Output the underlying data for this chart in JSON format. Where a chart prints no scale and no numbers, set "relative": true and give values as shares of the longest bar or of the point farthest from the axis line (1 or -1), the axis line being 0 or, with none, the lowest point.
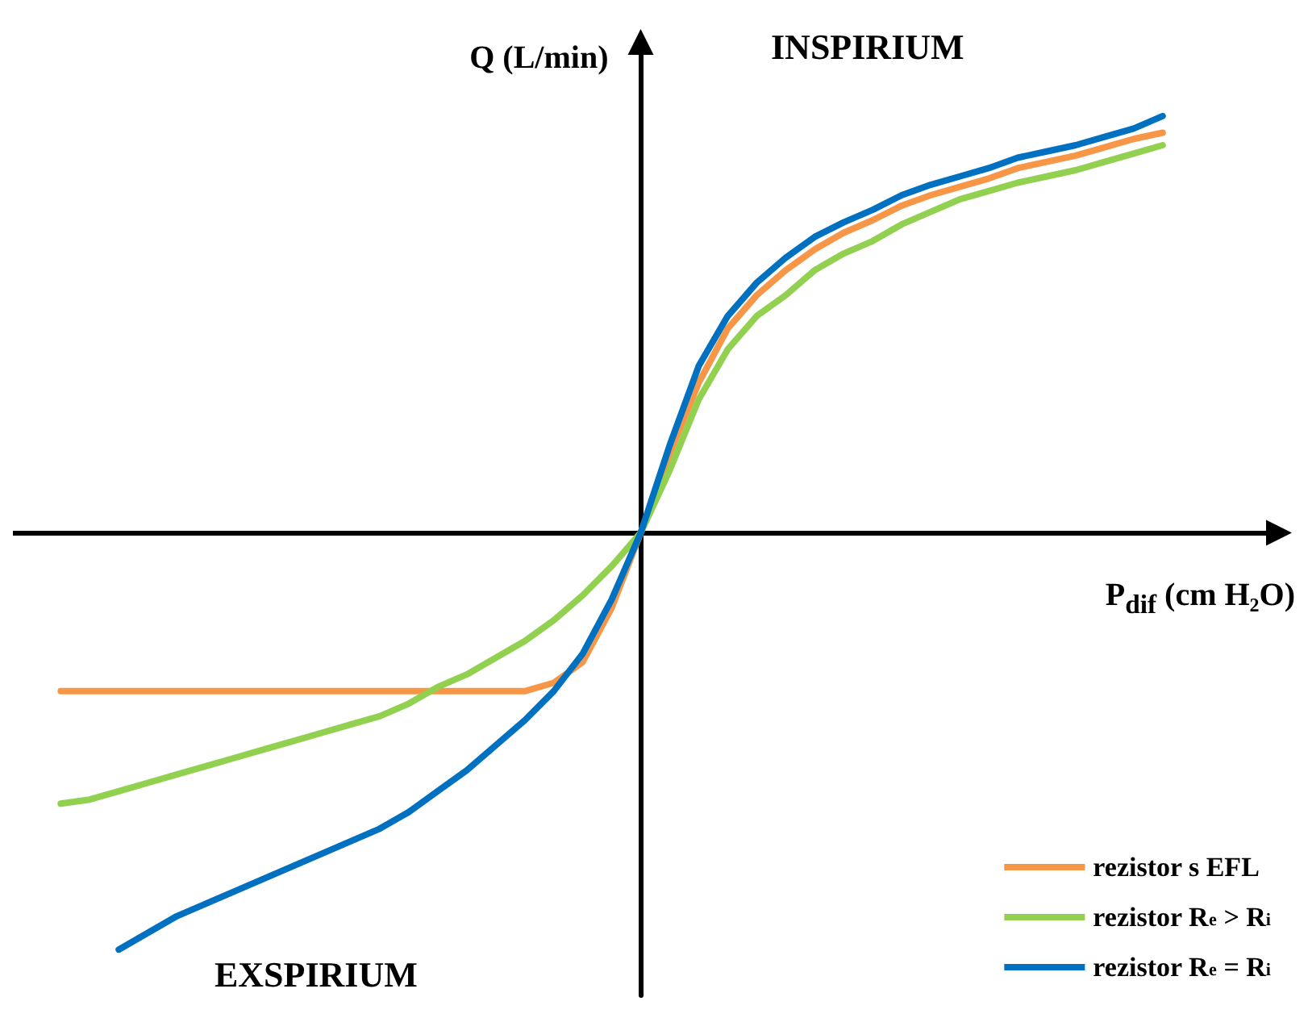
{
  "chart_data": {
    "type": "line",
    "relative": true,
    "xlabel": "P$_{dif}$ (cm H₂O)",
    "ylabel": "Q (L/min)",
    "grid": false,
    "legend": "bottom right",
    "marker": "none",
    "line_style": "solid",
    "annotations": [
      "INSPIRIUM",
      "EXSPIRIUM"
    ],
    "categories": [
      null,
      null,
      null,
      null,
      null,
      null,
      null,
      null,
      null,
      null,
      null,
      null,
      null,
      null,
      null,
      null,
      null,
      null,
      null,
      null,
      null,
      null,
      null,
      null,
      null,
      null,
      null,
      null,
      null,
      null,
      null,
      null,
      null,
      null,
      null,
      null,
      null,
      null,
      null
    ],
    "series": [
      {
        "name": "rezistor s EFL",
        "color": "#f79646",
        "values": [
          -0.38,
          -0.38,
          -0.38,
          -0.38,
          -0.38,
          -0.38,
          -0.38,
          -0.38,
          -0.38,
          -0.38,
          -0.38,
          -0.38,
          -0.38,
          -0.38,
          -0.38,
          -0.38,
          -0.38,
          -0.36,
          -0.31,
          -0.18,
          0,
          0.19,
          0.36,
          0.49,
          0.57,
          0.63,
          0.68,
          0.72,
          0.75,
          0.785,
          0.81,
          0.83,
          0.85,
          0.875,
          0.89,
          0.905,
          0.925,
          0.945,
          0.96
        ]
      },
      {
        "name": "rezistor R$_{e}$ > R$_{i}$",
        "color": "#92d050",
        "values": [
          -0.65,
          -0.64,
          -0.62,
          -0.6,
          -0.58,
          -0.56,
          -0.54,
          -0.52,
          -0.5,
          -0.48,
          -0.46,
          -0.44,
          -0.41,
          -0.37,
          -0.34,
          -0.3,
          -0.26,
          -0.21,
          -0.15,
          -0.08,
          0,
          0.15,
          0.32,
          0.44,
          0.52,
          0.57,
          0.63,
          0.67,
          0.7,
          0.74,
          0.77,
          0.8,
          0.82,
          0.84,
          0.855,
          0.87,
          0.89,
          0.91,
          0.93
        ]
      },
      {
        "name": "rezistor R$_{e}$ = R$_{i}$",
        "color": "#0070c0",
        "values": [
          null,
          null,
          -1,
          -0.96,
          -0.92,
          -0.89,
          -0.86,
          -0.83,
          -0.8,
          -0.77,
          -0.74,
          -0.71,
          -0.67,
          -0.62,
          -0.57,
          -0.51,
          -0.45,
          -0.38,
          -0.29,
          -0.16,
          0,
          0.21,
          0.4,
          0.52,
          0.6,
          0.66,
          0.71,
          0.745,
          0.775,
          0.81,
          0.835,
          0.855,
          0.875,
          0.9,
          0.915,
          0.93,
          0.95,
          0.97,
          1
        ]
      }
    ]
  }
}
